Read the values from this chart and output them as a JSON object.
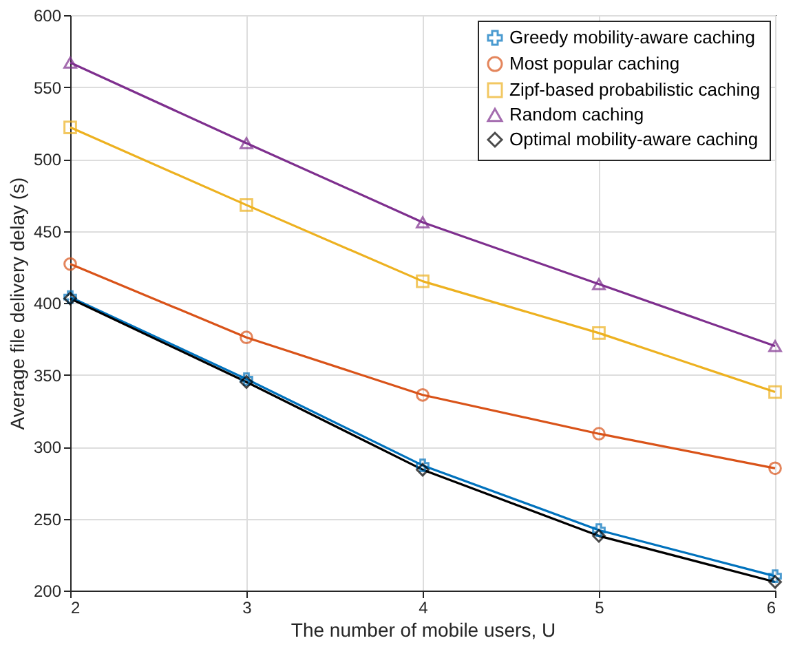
{
  "chart_data": {
    "type": "line",
    "xlabel": "The number of mobile users, U",
    "ylabel": "Average file delivery delay (s)",
    "x": [
      2,
      3,
      4,
      5,
      6
    ],
    "xlim": [
      2,
      6
    ],
    "xticks": [
      2,
      3,
      4,
      5,
      6
    ],
    "ylim": [
      200,
      600
    ],
    "yticks": [
      200,
      250,
      300,
      350,
      400,
      450,
      500,
      550,
      600
    ],
    "grid": true,
    "legend": "top right",
    "line_style": "solid",
    "series": [
      {
        "name": "Greedy mobility-aware caching",
        "color": "#0072bd",
        "marker": "cross",
        "values": [
          404,
          347,
          287,
          242,
          210
        ]
      },
      {
        "name": "Most popular caching",
        "color": "#d95319",
        "marker": "circle",
        "values": [
          427,
          376,
          336,
          309,
          285
        ]
      },
      {
        "name": "Zipf-based probabilistic caching",
        "color": "#edb120",
        "marker": "square",
        "values": [
          522,
          468,
          415,
          379,
          338
        ]
      },
      {
        "name": "Random caching",
        "color": "#7e2f8e",
        "marker": "triangle",
        "values": [
          567,
          511,
          456,
          413,
          370
        ]
      },
      {
        "name": "Optimal mobility-aware caching",
        "color": "#000000",
        "marker": "diamond",
        "values": [
          403,
          345,
          284,
          238,
          206
        ]
      }
    ]
  }
}
